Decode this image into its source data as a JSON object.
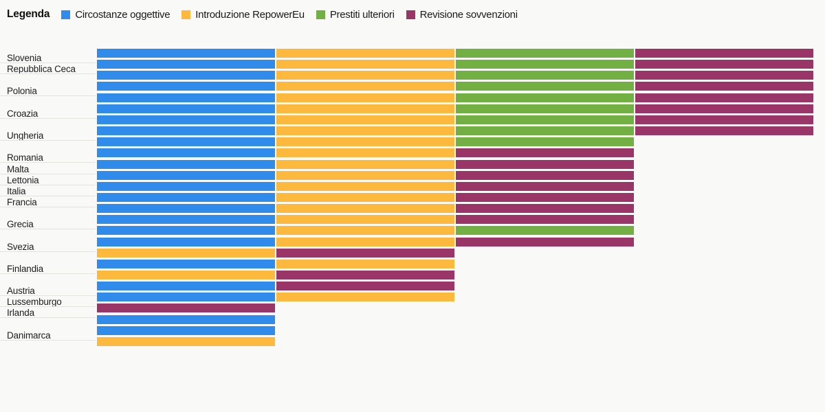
{
  "background_color": "#f9f9f7",
  "gridline_color": "#e3e3e0",
  "label_text_color": "#1d1d1d",
  "legend": {
    "title": "Legenda",
    "items": [
      {
        "label": "Circostanze oggettive",
        "color": "#318BEA"
      },
      {
        "label": "Introduzione RepowerEu",
        "color": "#FDB93E"
      },
      {
        "label": "Prestiti ulteriori",
        "color": "#72B044"
      },
      {
        "label": "Revisione sovvenzioni",
        "color": "#9A3667"
      }
    ]
  },
  "chart_data": {
    "type": "bar",
    "orientation": "horizontal",
    "stacked": true,
    "legend_position": "top",
    "grid": "gutter-lines-under-labeled-rows",
    "categories": [
      "Circostanze oggettive",
      "Introduzione RepowerEu",
      "Prestiti ulteriori",
      "Revisione sovvenzioni"
    ],
    "colors": [
      "#318BEA",
      "#FDB93E",
      "#72B044",
      "#9A3667"
    ],
    "unit_value": 1,
    "value_note": "each present category is drawn as one equal-width block packed from the left",
    "rows": [
      {
        "label": "Slovenia",
        "values": [
          1,
          1,
          1,
          1
        ]
      },
      {
        "label": "Repubblica Ceca",
        "values": [
          1,
          1,
          1,
          1
        ]
      },
      {
        "label": "",
        "values": [
          1,
          1,
          1,
          1
        ]
      },
      {
        "label": "Polonia",
        "values": [
          1,
          1,
          1,
          1
        ]
      },
      {
        "label": "",
        "values": [
          1,
          1,
          1,
          1
        ]
      },
      {
        "label": "Croazia",
        "values": [
          1,
          1,
          1,
          1
        ]
      },
      {
        "label": "",
        "values": [
          1,
          1,
          1,
          1
        ]
      },
      {
        "label": "Ungheria",
        "values": [
          1,
          1,
          1,
          1
        ]
      },
      {
        "label": "",
        "values": [
          1,
          1,
          1,
          0
        ]
      },
      {
        "label": "Romania",
        "values": [
          1,
          1,
          0,
          1
        ]
      },
      {
        "label": "Malta",
        "values": [
          1,
          1,
          0,
          1
        ]
      },
      {
        "label": "Lettonia",
        "values": [
          1,
          1,
          0,
          1
        ]
      },
      {
        "label": "Italia",
        "values": [
          1,
          1,
          0,
          1
        ]
      },
      {
        "label": "Francia",
        "values": [
          1,
          1,
          0,
          1
        ]
      },
      {
        "label": "",
        "values": [
          1,
          1,
          0,
          1
        ]
      },
      {
        "label": "Grecia",
        "values": [
          1,
          1,
          0,
          1
        ]
      },
      {
        "label": "",
        "values": [
          1,
          1,
          1,
          0
        ]
      },
      {
        "label": "Svezia",
        "values": [
          1,
          1,
          0,
          1
        ]
      },
      {
        "label": "",
        "values": [
          0,
          1,
          0,
          1
        ]
      },
      {
        "label": "Finlandia",
        "values": [
          1,
          1,
          0,
          0
        ]
      },
      {
        "label": "",
        "values": [
          0,
          1,
          0,
          1
        ]
      },
      {
        "label": "Austria",
        "values": [
          1,
          0,
          0,
          1
        ]
      },
      {
        "label": "Lussemburgo",
        "values": [
          1,
          1,
          0,
          0
        ]
      },
      {
        "label": "Irlanda",
        "values": [
          0,
          0,
          0,
          1
        ]
      },
      {
        "label": "",
        "values": [
          1,
          0,
          0,
          0
        ]
      },
      {
        "label": "Danimarca",
        "values": [
          1,
          0,
          0,
          0
        ]
      },
      {
        "label": "",
        "values": [
          0,
          1,
          0,
          0
        ]
      }
    ]
  }
}
